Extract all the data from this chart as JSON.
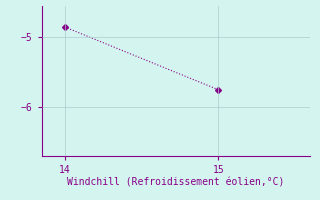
{
  "x": [
    14,
    15
  ],
  "y": [
    -4.85,
    -5.75
  ],
  "line_color": "#880088",
  "marker": "D",
  "marker_size": 3,
  "background_color": "#d4f5ef",
  "grid_color": "#aacccc",
  "xlabel": "Windchill (Refroidissement éolien,°C)",
  "xlabel_color": "#880088",
  "tick_color": "#880088",
  "spine_color": "#880088",
  "xlim": [
    13.85,
    15.6
  ],
  "ylim": [
    -6.7,
    -4.55
  ],
  "xticks": [
    14,
    15
  ],
  "yticks": [
    -6,
    -5
  ],
  "xlabel_fontsize": 7,
  "tick_fontsize": 7,
  "linestyle": ":"
}
